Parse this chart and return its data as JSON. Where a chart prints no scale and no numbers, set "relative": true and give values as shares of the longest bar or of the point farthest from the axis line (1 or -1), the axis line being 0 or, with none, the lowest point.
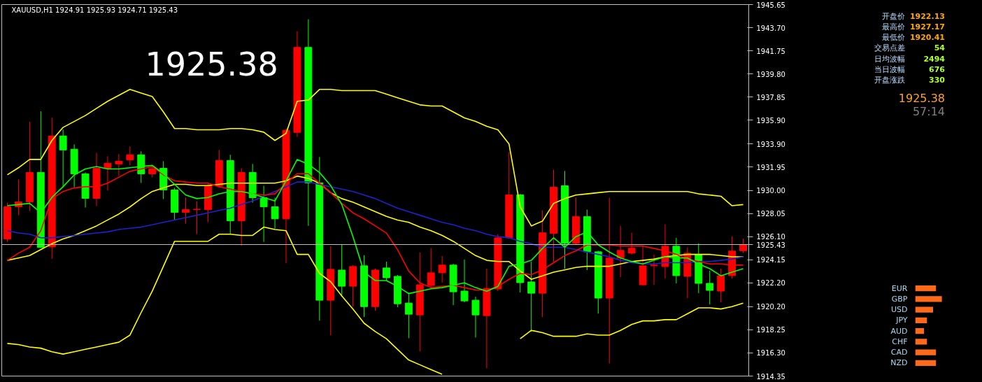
{
  "chart_data": [
    {
      "type": "candlestick",
      "title": "XAUUSD,H1  1924.91 1925.93 1924.71 1925.43",
      "categories": [
        null,
        null,
        null,
        null,
        null,
        null,
        null,
        null,
        null,
        null,
        null,
        null,
        null,
        null,
        null,
        null,
        null,
        null,
        null,
        null,
        null,
        null,
        null,
        null,
        null,
        null,
        null,
        null,
        null,
        null,
        null,
        null,
        null,
        null,
        null,
        null,
        null,
        null,
        null,
        null,
        null,
        null,
        null,
        null,
        null,
        null,
        null,
        null,
        null,
        null,
        null,
        null,
        null,
        null,
        null,
        null,
        null,
        null,
        null,
        null,
        null,
        null,
        null,
        null,
        null,
        null,
        null
      ],
      "ohlc": [
        [
          1925.89,
          1928.96,
          1925.65,
          1928.61
        ],
        [
          1928.61,
          1930.92,
          1927.9,
          1929.02
        ],
        [
          1929.02,
          1935.77,
          1928.25,
          1931.51
        ],
        [
          1931.51,
          1936.66,
          1925.18,
          1925.18
        ],
        [
          1925.24,
          1936.12,
          1924.23,
          1934.58
        ],
        [
          1934.58,
          1935.12,
          1930.26,
          1933.4
        ],
        [
          1933.46,
          1933.87,
          1930.26,
          1931.39
        ],
        [
          1931.39,
          1931.51,
          1928.55,
          1929.32
        ],
        [
          1929.32,
          1933.16,
          1928.67,
          1931.86
        ],
        [
          1931.86,
          1932.87,
          1929.97,
          1932.28
        ],
        [
          1932.22,
          1933.05,
          1931.21,
          1932.45
        ],
        [
          1932.57,
          1933.7,
          1932.1,
          1932.99
        ],
        [
          1932.99,
          1933.28,
          1930.62,
          1931.39
        ],
        [
          1931.39,
          1932.04,
          1931.09,
          1931.8
        ],
        [
          1931.86,
          1932.45,
          1929.26,
          1930.03
        ],
        [
          1930.03,
          1930.21,
          1927.48,
          1928.14
        ],
        [
          1928.14,
          1929.38,
          1927.19,
          1928.37
        ],
        [
          1928.37,
          1929.08,
          1926.3,
          1928.4
        ],
        [
          1928.37,
          1930.55,
          1927.31,
          1930.38
        ],
        [
          1930.38,
          1933.4,
          1930.21,
          1932.51
        ],
        [
          1932.51,
          1932.99,
          1926.3,
          1927.43
        ],
        [
          1927.43,
          1931.86,
          1925.35,
          1931.51
        ],
        [
          1931.51,
          1932.22,
          1928.96,
          1929.38
        ],
        [
          1929.38,
          1930.38,
          1925.65,
          1928.61
        ],
        [
          1928.61,
          1929.38,
          1926.77,
          1927.6
        ],
        [
          1927.6,
          1935.2,
          1923.87,
          1935.06
        ],
        [
          1934.88,
          1943.4,
          1934.5,
          1942.04
        ],
        [
          1942.04,
          1944.41,
          1927.01,
          1930.62
        ],
        [
          1930.62,
          1932.81,
          1919.02,
          1920.74
        ],
        [
          1920.74,
          1925.29,
          1917.78,
          1923.34
        ],
        [
          1923.28,
          1925.47,
          1921.03,
          1921.92
        ],
        [
          1921.92,
          1923.7,
          1920.2,
          1923.58
        ],
        [
          1923.64,
          1924.53,
          1919.32,
          1920.2
        ],
        [
          1920.2,
          1923.4,
          1919.85,
          1923.28
        ],
        [
          1923.46,
          1923.99,
          1922.4,
          1922.63
        ],
        [
          1922.75,
          1922.87,
          1920.15,
          1920.44
        ],
        [
          1920.5,
          1921.39,
          1917.54,
          1919.56
        ],
        [
          1919.5,
          1924.76,
          1916.42,
          1922.04
        ],
        [
          1921.98,
          1925.12,
          1921.8,
          1923.05
        ],
        [
          1923.05,
          1924.47,
          1922.22,
          1923.7
        ],
        [
          1923.7,
          1923.81,
          1920.32,
          1921.45
        ],
        [
          1921.51,
          1924.17,
          1920.56,
          1920.68
        ],
        [
          1920.74,
          1921.03,
          1917.6,
          1919.5
        ],
        [
          1919.44,
          1923.4,
          1915.0,
          1921.74
        ],
        [
          1921.69,
          1926.3,
          1921.5,
          1926.0
        ],
        [
          1926.0,
          1933.22,
          1925.9,
          1929.61
        ],
        [
          1929.61,
          1929.7,
          1921.39,
          1922.22
        ],
        [
          1922.28,
          1923.99,
          1918.08,
          1921.33
        ],
        [
          1921.33,
          1928.31,
          1919.32,
          1926.42
        ],
        [
          1926.36,
          1931.74,
          1923.99,
          1930.26
        ],
        [
          1930.38,
          1931.63,
          1923.4,
          1925.53
        ],
        [
          1925.53,
          1929.38,
          1925.4,
          1927.78
        ],
        [
          1927.78,
          1928.37,
          1923.28,
          1924.82
        ],
        [
          1924.82,
          1924.9,
          1919.61,
          1920.92
        ],
        [
          1920.92,
          1929.38,
          1915.41,
          1924.29
        ],
        [
          1924.29,
          1927.01,
          1922.69,
          1924.94
        ],
        [
          1924.7,
          1926.42,
          1924.6,
          1925.12
        ],
        [
          1922.04,
          1925.35,
          1922.0,
          1923.64
        ],
        [
          1923.64,
          1924.58,
          1922.04,
          1923.7
        ],
        [
          1923.58,
          1927.13,
          1922.57,
          1925.29
        ],
        [
          1925.29,
          1926.0,
          1922.16,
          1922.81
        ],
        [
          1922.75,
          1925.18,
          1920.92,
          1924.7
        ],
        [
          1924.58,
          1925.53,
          1921.33,
          1922.16
        ],
        [
          1922.16,
          1923.22,
          1920.38,
          1921.57
        ],
        [
          1921.51,
          1923.4,
          1920.56,
          1922.81
        ],
        [
          1922.81,
          1926.12,
          1922.57,
          1924.88
        ],
        [
          1924.91,
          1925.93,
          1924.71,
          1925.43
        ]
      ],
      "colors": [
        "#ff0000",
        "#ff0000",
        "#ff0000",
        "#00ff00",
        "#ff0000",
        "#00ff00",
        "#00ff00",
        "#00ff00",
        "#ff0000",
        "#ff0000",
        "#ff0000",
        "#ff0000",
        "#00ff00",
        "#ff0000",
        "#00ff00",
        "#00ff00",
        "#ff0000",
        "#ff0000",
        "#ff0000",
        "#ff0000",
        "#00ff00",
        "#ff0000",
        "#00ff00",
        "#00ff00",
        "#00ff00",
        "#ff0000",
        "#ff0000",
        "#00ff00",
        "#00ff00",
        "#ff0000",
        "#00ff00",
        "#ff0000",
        "#00ff00",
        "#ff0000",
        "#00ff00",
        "#00ff00",
        "#00ff00",
        "#ff0000",
        "#ff0000",
        "#ff0000",
        "#00ff00",
        "#00ff00",
        "#00ff00",
        "#ff0000",
        "#ff0000",
        "#ff0000",
        "#00ff00",
        "#00ff00",
        "#ff0000",
        "#ff0000",
        "#00ff00",
        "#ff0000",
        "#00ff00",
        "#00ff00",
        "#ff0000",
        "#ff0000",
        "#ff0000",
        "#ff0000",
        "#ff0000",
        "#ff0000",
        "#00ff00",
        "#ff0000",
        "#00ff00",
        "#00ff00",
        "#ff0000",
        "#ff0000",
        "#ff0000"
      ],
      "ylim": [
        1914.35,
        1945.65
      ],
      "yticks": [
        {
          "value": 1945.65,
          "label": "1945.65"
        },
        {
          "value": 1943.7,
          "label": "1943.70"
        },
        {
          "value": 1941.75,
          "label": "1941.75"
        },
        {
          "value": 1939.8,
          "label": "1939.80"
        },
        {
          "value": 1937.85,
          "label": "1937.85"
        },
        {
          "value": 1935.9,
          "label": "1935.90"
        },
        {
          "value": 1933.9,
          "label": "1933.90"
        },
        {
          "value": 1931.95,
          "label": "1931.95"
        },
        {
          "value": 1930.0,
          "label": "1930.00"
        },
        {
          "value": 1928.05,
          "label": "1928.05"
        },
        {
          "value": 1926.1,
          "label": "1926.10"
        },
        {
          "value": 1924.15,
          "label": "1924.15"
        },
        {
          "value": 1922.2,
          "label": "1922.20"
        },
        {
          "value": 1920.2,
          "label": "1920.20"
        },
        {
          "value": 1918.25,
          "label": "1918.25"
        },
        {
          "value": 1916.3,
          "label": "1916.30"
        },
        {
          "value": 1914.35,
          "label": "1914.35"
        }
      ],
      "tick_labels": "y",
      "ref_lines": [
        {
          "axis": "y",
          "value": 1925.43,
          "label": "1925.43",
          "color": "#c0c0c0"
        }
      ],
      "annotations": [
        "1925.38",
        "开盘价",
        "1922.13",
        "最高价",
        "1927.17",
        "最低价",
        "1920.41",
        "交易点差",
        "54",
        "日均波幅",
        "2494",
        "当日波幅",
        "676",
        "开盘涨跌",
        "330",
        "1925.38",
        "57:14"
      ],
      "series": [
        {
          "type": "line",
          "color": "#ffff00",
          "values": [
            1931.3,
            1931.9,
            1932.6,
            1932.6,
            1934.2,
            1935.3,
            1935.8,
            1936.3,
            1936.9,
            1937.5,
            1938.0,
            1938.5,
            1938.2,
            1937.9,
            1936.6,
            1935.2,
            1935.2,
            1935.1,
            1935.1,
            1935.1,
            1935.2,
            1935.2,
            1935.1,
            1934.9,
            1934.2,
            1934.8,
            1937.5,
            1937.6,
            1938.5,
            1938.5,
            1938.4,
            1938.4,
            1938.4,
            1938.4,
            1938.1,
            1937.8,
            1937.5,
            1937.2,
            1937.1,
            1937.1,
            1936.6,
            1936.1,
            1935.8,
            1935.4,
            1935.1,
            1933.9,
            1928.6,
            1927.0,
            1927.4,
            1928.9,
            1929.3,
            1929.6,
            1929.7,
            1929.8,
            1929.9,
            1929.9,
            1929.9,
            1929.9,
            1929.9,
            1929.9,
            1929.9,
            1929.9,
            1929.7,
            1929.6,
            1929.5,
            1928.7,
            1928.8
          ]
        },
        {
          "type": "line",
          "color": "#ffff00",
          "values": [
            1924.1,
            1924.3,
            1924.5,
            1925.0,
            1925.5,
            1925.9,
            1926.2,
            1926.6,
            1927.0,
            1927.5,
            1928.0,
            1928.6,
            1929.3,
            1929.9,
            1930.2,
            1930.5,
            1930.5,
            1930.4,
            1930.4,
            1930.5,
            1930.6,
            1930.6,
            1930.6,
            1930.6,
            1930.6,
            1930.8,
            1931.2,
            1931.0,
            1930.6,
            1929.8,
            1929.3,
            1929.0,
            1928.6,
            1928.2,
            1927.8,
            1927.5,
            1927.3,
            1926.9,
            1926.6,
            1926.2,
            1925.7,
            1925.1,
            1924.5,
            1924.1,
            1924.0,
            1924.0,
            1923.2,
            1922.5,
            1922.8,
            1923.1,
            1923.3,
            1923.5,
            1923.6,
            1923.6,
            1923.6,
            1923.8,
            1924.0,
            1924.1,
            1924.2,
            1924.4,
            1924.5,
            1924.6,
            1924.6,
            1924.6,
            1924.5,
            1924.4,
            1924.4
          ]
        },
        {
          "type": "line",
          "color": "#ffff00",
          "values": [
            1917.1,
            1917.0,
            1916.8,
            1916.7,
            1916.4,
            1916.2,
            1916.4,
            1916.6,
            1916.8,
            1917.0,
            1917.2,
            1917.8,
            1919.7,
            1921.5,
            1923.6,
            1925.7,
            1925.7,
            1925.7,
            1925.7,
            1926.3,
            1926.3,
            1926.2,
            1926.2,
            1926.9,
            1926.7,
            1926.6,
            1924.6,
            1924.6,
            1923.0,
            1922.3,
            1921.1,
            1920.0,
            1918.8,
            1918.1,
            1917.5,
            1916.6,
            1915.7,
            1915.3,
            1914.9,
            1914.5,
            null,
            null,
            null,
            null,
            null,
            null,
            1917.5,
            1918.2,
            1918.0,
            1917.7,
            1917.7,
            1917.7,
            1917.9,
            1917.8,
            1917.8,
            1918.2,
            1918.7,
            1919.0,
            1919.0,
            1919.1,
            1919.1,
            1919.6,
            1920.1,
            1920.1,
            1920.0,
            1920.2,
            1920.5
          ]
        },
        {
          "type": "line",
          "color": "#2020d0",
          "values": [
            1926.6,
            1926.4,
            1926.3,
            1926.0,
            1926.0,
            1926.1,
            1926.2,
            1926.3,
            1926.4,
            1926.5,
            1926.7,
            1926.8,
            1926.9,
            1927.1,
            1927.3,
            1927.5,
            1927.7,
            1927.9,
            1928.1,
            1928.3,
            1928.5,
            1928.8,
            1929.1,
            1929.5,
            1929.9,
            1930.3,
            1930.7,
            1930.7,
            1930.5,
            1930.3,
            1930.1,
            1929.9,
            1929.6,
            1929.3,
            1928.9,
            1928.5,
            1928.2,
            1927.9,
            1927.6,
            1927.3,
            1927.1,
            1926.8,
            1926.6,
            1926.3,
            1926.1,
            1926.0,
            1925.7,
            1925.5,
            1925.2,
            1925.2,
            1925.2,
            1925.0,
            1924.8,
            1924.6,
            1924.4,
            1924.1,
            1923.9,
            1923.8,
            1923.8,
            1923.9,
            1923.9,
            1923.9,
            1924.0,
            1924.0,
            1924.1,
            1924.2,
            1924.4
          ]
        },
        {
          "type": "line",
          "color": "#ff0000",
          "values": [
            1924.1,
            1924.7,
            1925.2,
            1926.6,
            1929.3,
            1929.9,
            1930.2,
            1930.3,
            1930.3,
            1930.6,
            1931.1,
            1931.6,
            1931.8,
            1932.0,
            1931.3,
            1930.8,
            1930.7,
            1930.6,
            1930.6,
            1930.3,
            1930.1,
            1929.9,
            1929.7,
            1929.6,
            1929.7,
            1930.6,
            1931.4,
            1931.4,
            1930.6,
            1929.8,
            1928.9,
            1928.1,
            1927.6,
            1927.0,
            1926.4,
            1925.0,
            1923.2,
            1922.2,
            1921.8,
            1921.9,
            1922.0,
            1921.8,
            1921.6,
            1921.6,
            1921.9,
            1922.5,
            1923.0,
            1922.9,
            1923.3,
            1923.9,
            1924.5,
            1924.9,
            1925.4,
            1925.4,
            1925.4,
            1925.3,
            1925.3,
            1925.3,
            1925.1,
            1924.9,
            1924.6,
            1924.2,
            1924.0,
            1923.8,
            1923.8,
            1923.7,
            1923.7
          ]
        },
        {
          "type": "line",
          "color": "#00ff00",
          "values": [
            1928.7,
            1928.8,
            1928.9,
            1928.1,
            1929.4,
            1930.3,
            1931.3,
            1931.8,
            1932.0,
            1931.8,
            1931.8,
            1931.9,
            1932.0,
            1932.1,
            1931.4,
            1930.5,
            1929.6,
            1929.3,
            1929.4,
            1929.7,
            1929.9,
            1929.9,
            1929.7,
            1929.4,
            1929.1,
            1930.8,
            1932.6,
            1932.2,
            1931.5,
            1930.4,
            1928.8,
            1926.1,
            1923.1,
            1922.4,
            1922.4,
            1921.9,
            1921.3,
            1921.5,
            1921.7,
            1921.8,
            1922.0,
            1922.2,
            1921.8,
            1921.5,
            1921.9,
            1923.6,
            1923.8,
            1924.1,
            1925.1,
            1926.0,
            1925.2,
            1926.1,
            1926.5,
            1925.4,
            1924.8,
            1924.3,
            1924.0,
            1923.8,
            1924.1,
            1924.4,
            1924.3,
            1924.3,
            1923.8,
            1923.4,
            1922.8,
            1923.1,
            1923.4
          ]
        }
      ]
    },
    {
      "type": "bar",
      "orientation": "horizontal",
      "relative": true,
      "categories": [
        "EUR",
        "GBP",
        "USD",
        "JPY",
        "AUD",
        "CHF",
        "CAD",
        "NZD"
      ],
      "values": [
        0.78,
        1,
        0.67,
        0.44,
        0.33,
        0.44,
        0.78,
        0.78
      ],
      "color": "#ff6a1a"
    }
  ]
}
